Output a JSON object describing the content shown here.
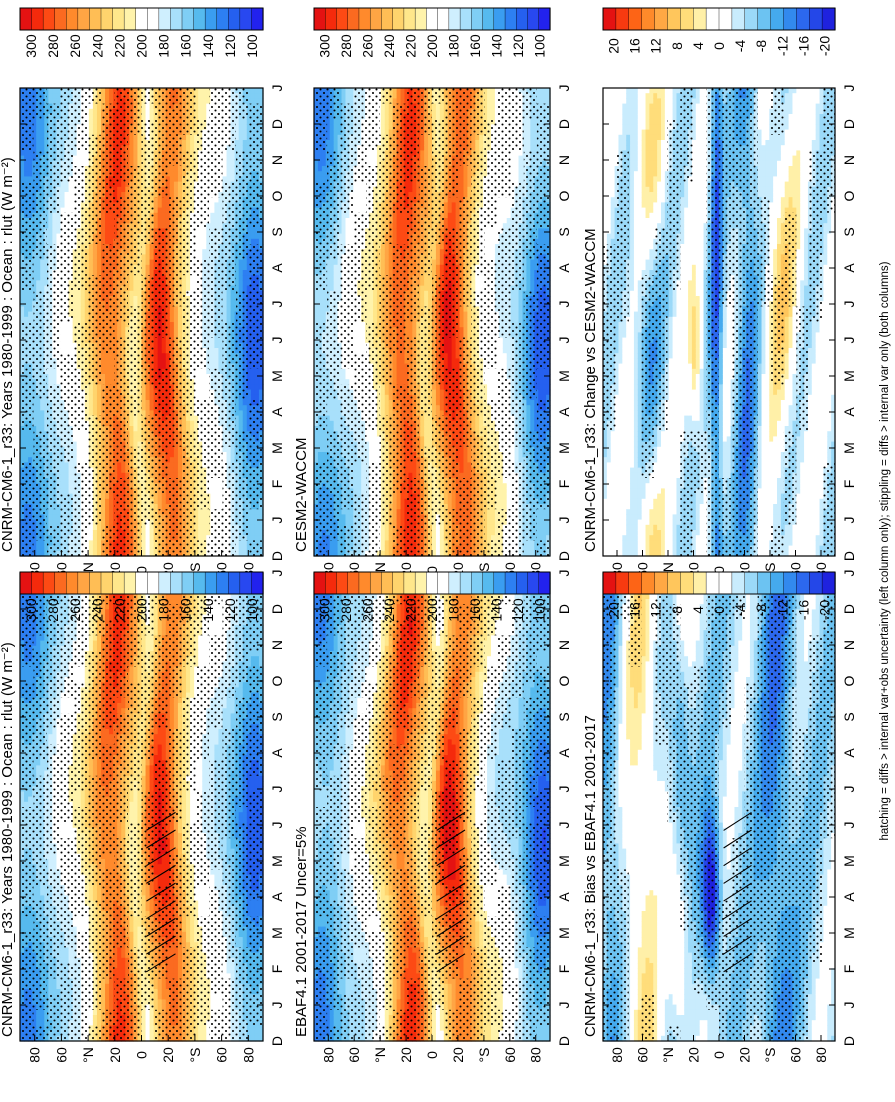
{
  "figure": {
    "footnote": "hatching = diffs > internal var+obs uncertainty (left column only); stippling = diffs > internal var only (both columns)"
  },
  "colors": {
    "flux_scale": [
      "#e41212",
      "#f52a0c",
      "#fd4a14",
      "#fb6a20",
      "#ff8a2c",
      "#ffa544",
      "#ffbe55",
      "#ffd46d",
      "#ffe78b",
      "#fff3ab",
      "#ffffff",
      "#ffffff",
      "#cfeffe",
      "#a8e0fb",
      "#7fcef5",
      "#56baee",
      "#3a9df0",
      "#2d7ff2",
      "#2560ef",
      "#2848f0",
      "#2222ee"
    ],
    "diff_scale": [
      "#e41212",
      "#f73a10",
      "#fd6416",
      "#ff8a2a",
      "#ffa844",
      "#ffc65c",
      "#ffdd7a",
      "#fff0a8",
      "#ffffff",
      "#ffffff",
      "#c9ecfd",
      "#9bd9f8",
      "#6cc3f2",
      "#45aaee",
      "#3289ee",
      "#2c68ee",
      "#2447e8",
      "#1f22de"
    ]
  },
  "colorbars": [
    {
      "id": "flux",
      "labels": [
        "300",
        "280",
        "260",
        "240",
        "220",
        "200",
        "180",
        "160",
        "140",
        "120",
        "100"
      ]
    },
    {
      "id": "diff",
      "labels": [
        "20",
        "16",
        "12",
        "8",
        "4",
        "0",
        "-4",
        "-8",
        "-12",
        "-16",
        "-20"
      ]
    }
  ],
  "axes": {
    "months": [
      "D",
      "J",
      "F",
      "M",
      "A",
      "M",
      "J",
      "J",
      "A",
      "S",
      "O",
      "N",
      "D",
      "J"
    ],
    "latitudes": [
      "80",
      "60",
      "°N",
      "20",
      "0",
      "20",
      "°S",
      "60",
      "80"
    ]
  },
  "chart_data": [
    {
      "type": "heatmap",
      "title": "CNRM-CM6-1_r33: Years 1980-1999 : Ocean : rlut (W m⁻²)",
      "variable": "rlut",
      "units": "W m-2",
      "x": "month",
      "y": "latitude",
      "colorbar": [
        300,
        280,
        260,
        240,
        220,
        200,
        180,
        160,
        140,
        120,
        100
      ],
      "field": "model",
      "hatching": true,
      "stippling": true
    },
    {
      "type": "heatmap",
      "title": "EBAF4.1 2001-2017 Uncer=5%",
      "variable": "rlut",
      "units": "W m-2",
      "x": "month",
      "y": "latitude",
      "colorbar": [
        300,
        280,
        260,
        240,
        220,
        200,
        180,
        160,
        140,
        120,
        100
      ],
      "field": "obs",
      "hatching": true,
      "stippling": true
    },
    {
      "type": "heatmap",
      "title": "CNRM-CM6-1_r33: Bias vs EBAF4.1 2001-2017",
      "variable": "rlut difference",
      "units": "W m-2",
      "x": "month",
      "y": "latitude",
      "colorbar": [
        20,
        16,
        12,
        8,
        4,
        0,
        -4,
        -8,
        -12,
        -16,
        -20
      ],
      "field": "bias",
      "hatching": true,
      "stippling": true
    },
    {
      "type": "heatmap",
      "title": "CNRM-CM6-1_r33: Years 1980-1999 : Ocean : rlut (W m⁻²)",
      "variable": "rlut",
      "units": "W m-2",
      "x": "month",
      "y": "latitude",
      "colorbar": [
        300,
        280,
        260,
        240,
        220,
        200,
        180,
        160,
        140,
        120,
        100
      ],
      "field": "model2",
      "hatching": false,
      "stippling": true
    },
    {
      "type": "heatmap",
      "title": "CESM2-WACCM",
      "variable": "rlut",
      "units": "W m-2",
      "x": "month",
      "y": "latitude",
      "colorbar": [
        300,
        280,
        260,
        240,
        220,
        200,
        180,
        160,
        140,
        120,
        100
      ],
      "field": "cesm",
      "hatching": false,
      "stippling": true
    },
    {
      "type": "heatmap",
      "title": "CNRM-CM6-1_r33: Change vs CESM2-WACCM",
      "variable": "rlut difference",
      "units": "W m-2",
      "x": "month",
      "y": "latitude",
      "colorbar": [
        20,
        16,
        12,
        8,
        4,
        0,
        -4,
        -8,
        -12,
        -16,
        -20
      ],
      "field": "change",
      "hatching": false,
      "stippling": true
    }
  ]
}
